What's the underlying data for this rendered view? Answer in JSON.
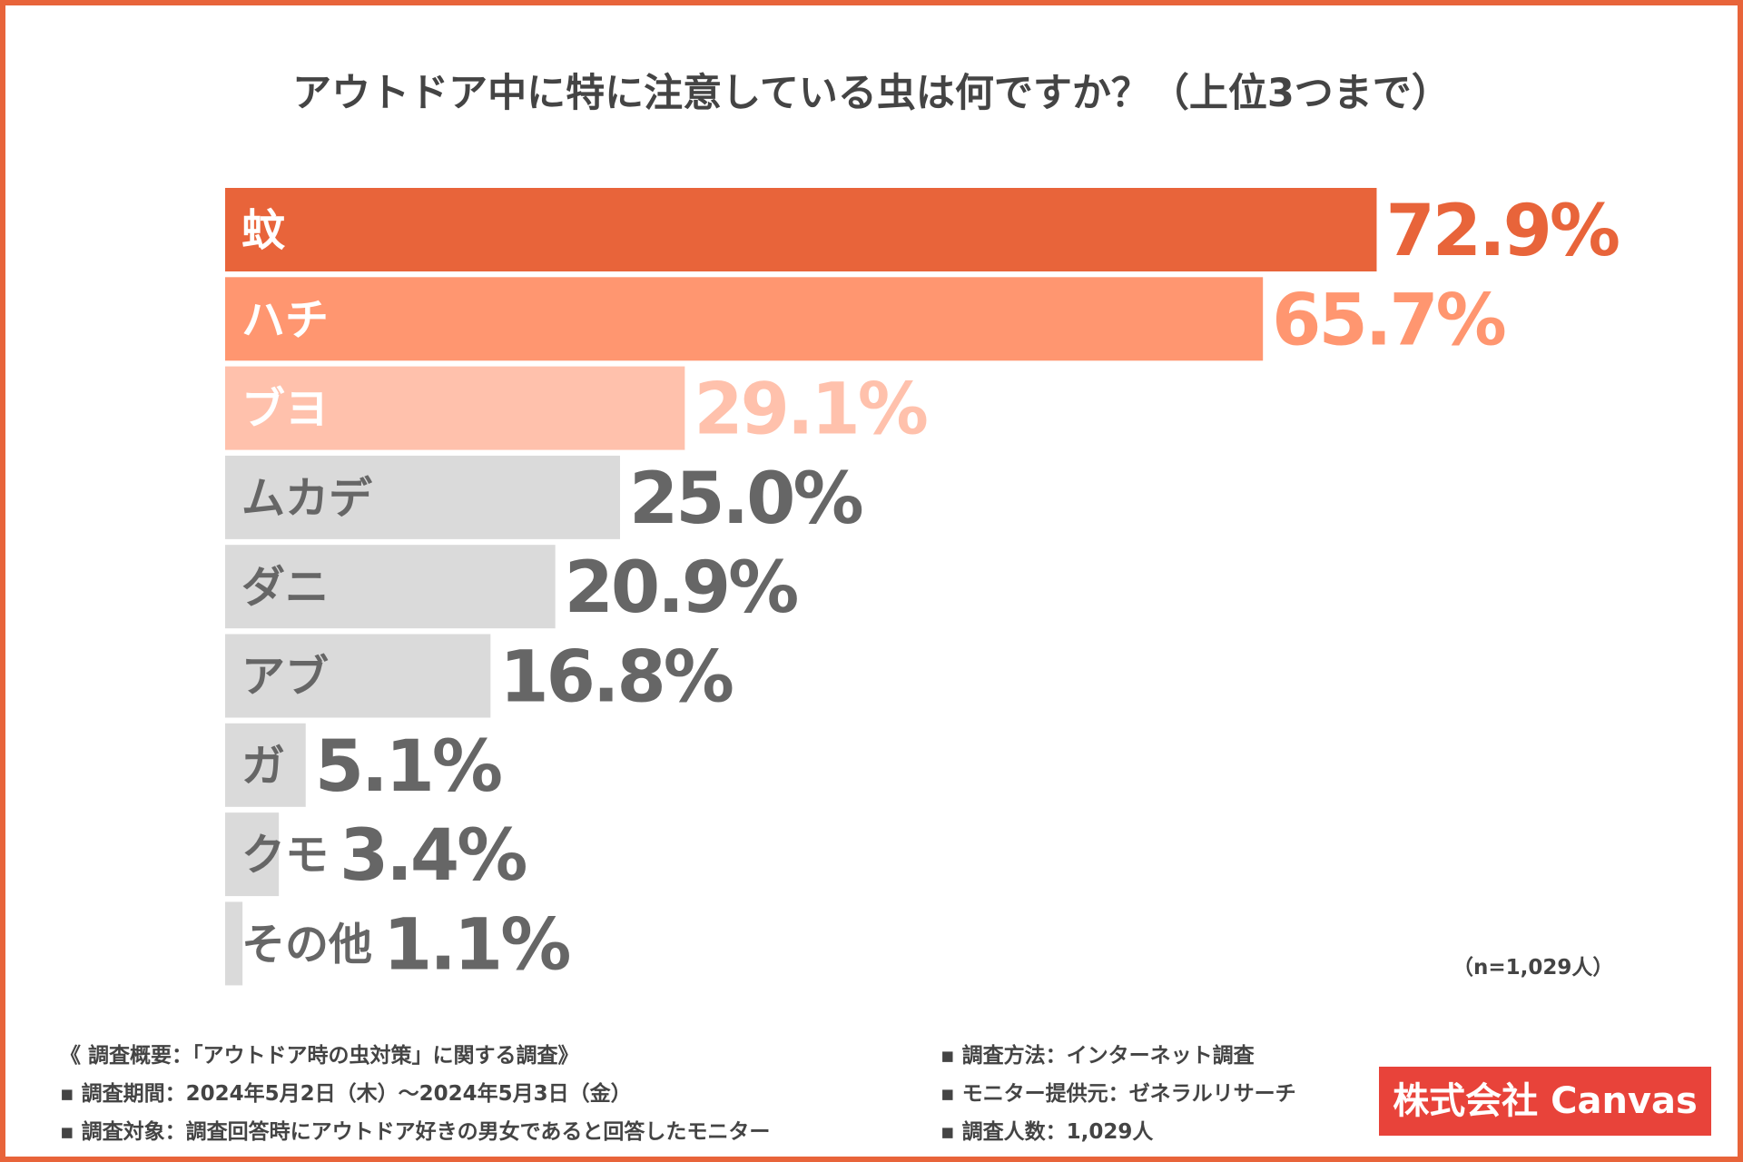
{
  "title": "アウトドア中に特に注意している虫は何ですか？（上位3つまで）",
  "chart_data": {
    "type": "bar",
    "orientation": "horizontal",
    "title": "アウトドア中に特に注意している虫は何ですか？（上位3つまで）",
    "categories": [
      "蚊",
      "ハチ",
      "ブヨ",
      "ムカデ",
      "ダニ",
      "アブ",
      "ガ",
      "クモ",
      "その他"
    ],
    "values": [
      72.9,
      65.7,
      29.1,
      25.0,
      20.9,
      16.8,
      5.1,
      3.4,
      1.1
    ],
    "value_labels": [
      "72.9%",
      "65.7%",
      "29.1%",
      "25.0%",
      "20.9%",
      "16.8%",
      "5.1%",
      "3.4%",
      "1.1%"
    ],
    "xlim": [
      0,
      80
    ],
    "unit": "%",
    "grid": false,
    "colors": {
      "bars": [
        "#E8643A",
        "#FF9670",
        "#FFC1AC",
        "#DADADA",
        "#DADADA",
        "#DADADA",
        "#DADADA",
        "#DADADA",
        "#DADADA"
      ],
      "category_text": [
        "#FFFFFF",
        "#FFFFFF",
        "#FFFFFF",
        "#666666",
        "#666666",
        "#666666",
        "#666666",
        "#666666",
        "#666666"
      ],
      "value_text": [
        "#E8643A",
        "#FF9670",
        "#FFC1AC",
        "#666666",
        "#666666",
        "#666666",
        "#666666",
        "#666666",
        "#666666"
      ]
    }
  },
  "sample_size": "（n=1,029人）",
  "notes": {
    "left": [
      "《 調査概要：「アウトドア時の虫対策」に関する調査》",
      "▪ 調査期間：2024年5月2日（木）〜2024年5月3日（金）",
      "▪ 調査対象：調査回答時にアウトドア好きの男女であると回答したモニター"
    ],
    "right": [
      "▪ 調査方法：インターネット調査",
      "▪ モニター提供元：ゼネラルリサーチ",
      "▪ 調査人数：1,029人"
    ]
  },
  "brand": "株式会社 Canvas",
  "colors": {
    "accent": "#E8643A",
    "brand_bg": "#E8433A",
    "text": "#444444"
  }
}
